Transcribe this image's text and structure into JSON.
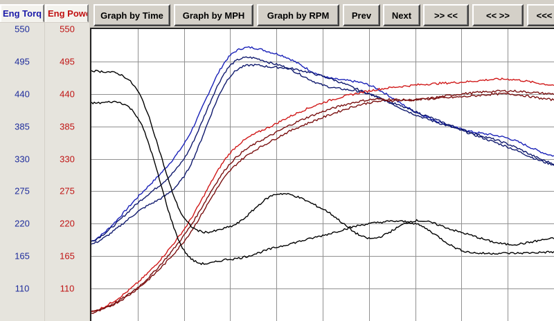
{
  "tabs": {
    "torque": "Eng Torq",
    "power": "Eng Powe"
  },
  "toolbar": {
    "graph_time": "Graph by Time",
    "graph_mph": "Graph by MPH",
    "graph_rpm": "Graph by RPM",
    "prev": "Prev",
    "next": "Next",
    "zoom_in": ">> <<",
    "zoom_out": "<< >>",
    "scroll_left": "<<<"
  },
  "colors": {
    "torque_axis": "#1e2c9c",
    "power_axis": "#c01414",
    "blue_trace": "#1a22b8",
    "navy_trace": "#101a6e",
    "red_trace": "#d01818",
    "darkred_trace": "#7a1010",
    "black_trace": "#000000",
    "grid": "#909090"
  },
  "chart_data": {
    "type": "line",
    "title": "",
    "xlabel": "",
    "ylabel": "",
    "ylim": [
      55,
      550
    ],
    "grid": true,
    "left_axis_label": "Eng Torq",
    "right_axis_label": "Eng Powe",
    "torque_ticks": [
      "550",
      "495",
      "440",
      "385",
      "330",
      "275",
      "220",
      "165",
      "110"
    ],
    "power_ticks": [
      "550",
      "495",
      "440",
      "385",
      "330",
      "275",
      "220",
      "165",
      "110"
    ],
    "x_divisions": 10,
    "series": [
      {
        "color": "#1a22b8",
        "x": [
          0,
          1,
          2,
          3,
          4,
          5,
          6,
          7,
          8,
          9,
          10
        ],
        "values": [
          190,
          265,
          355,
          505,
          508,
          470,
          455,
          410,
          380,
          365,
          335
        ]
      },
      {
        "color": "#101a6e",
        "x": [
          0,
          1,
          2,
          3,
          4,
          5,
          6,
          7,
          8,
          9,
          10
        ],
        "values": [
          190,
          255,
          330,
          488,
          490,
          455,
          440,
          405,
          378,
          350,
          320
        ]
      },
      {
        "color": "#101a6e",
        "x": [
          0,
          1,
          2,
          3,
          4,
          5,
          6,
          7,
          8,
          9,
          10
        ],
        "values": [
          185,
          240,
          300,
          470,
          485,
          470,
          440,
          410,
          380,
          355,
          322
        ]
      },
      {
        "color": "#d01818",
        "x": [
          0,
          1,
          2,
          3,
          4,
          5,
          6,
          7,
          8,
          9,
          10
        ],
        "values": [
          70,
          120,
          210,
          340,
          390,
          425,
          445,
          455,
          460,
          465,
          455
        ]
      },
      {
        "color": "#7a1010",
        "x": [
          0,
          1,
          2,
          3,
          4,
          5,
          6,
          7,
          8,
          9,
          10
        ],
        "values": [
          70,
          112,
          200,
          322,
          375,
          410,
          430,
          430,
          440,
          445,
          440
        ]
      },
      {
        "color": "#7a1010",
        "x": [
          0,
          1,
          2,
          3,
          4,
          5,
          6,
          7,
          8,
          9,
          10
        ],
        "values": [
          68,
          110,
          190,
          310,
          365,
          400,
          425,
          430,
          435,
          440,
          430
        ]
      },
      {
        "color": "#000000",
        "x": [
          0,
          1,
          2,
          3,
          4,
          5,
          6,
          7,
          8,
          9,
          10
        ],
        "values": [
          480,
          445,
          230,
          215,
          270,
          245,
          195,
          225,
          205,
          185,
          195
        ]
      },
      {
        "color": "#000000",
        "x": [
          0,
          1,
          2,
          3,
          4,
          5,
          6,
          7,
          8,
          9,
          10
        ],
        "values": [
          425,
          400,
          175,
          160,
          180,
          200,
          220,
          220,
          175,
          170,
          172
        ]
      }
    ]
  }
}
